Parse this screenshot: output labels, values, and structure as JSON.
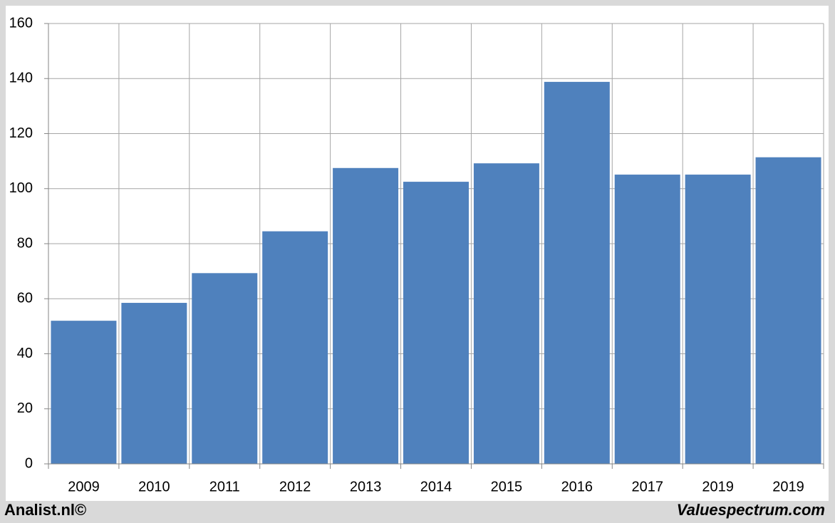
{
  "chart_data": {
    "type": "bar",
    "categories": [
      "2009",
      "2010",
      "2011",
      "2012",
      "2013",
      "2014",
      "2015",
      "2016",
      "2017",
      "2019",
      "2019"
    ],
    "values": [
      52,
      58.5,
      69.3,
      84.5,
      107.5,
      102.5,
      109.2,
      138.8,
      105.1,
      105.1,
      111.4
    ],
    "color": "#4f81bd",
    "ylim": [
      0,
      160
    ],
    "yticks": [
      0,
      20,
      40,
      60,
      80,
      100,
      120,
      140,
      160
    ],
    "grid": true
  },
  "footer": {
    "left": "Analist.nl©",
    "right": "Valuespectrum.com"
  }
}
